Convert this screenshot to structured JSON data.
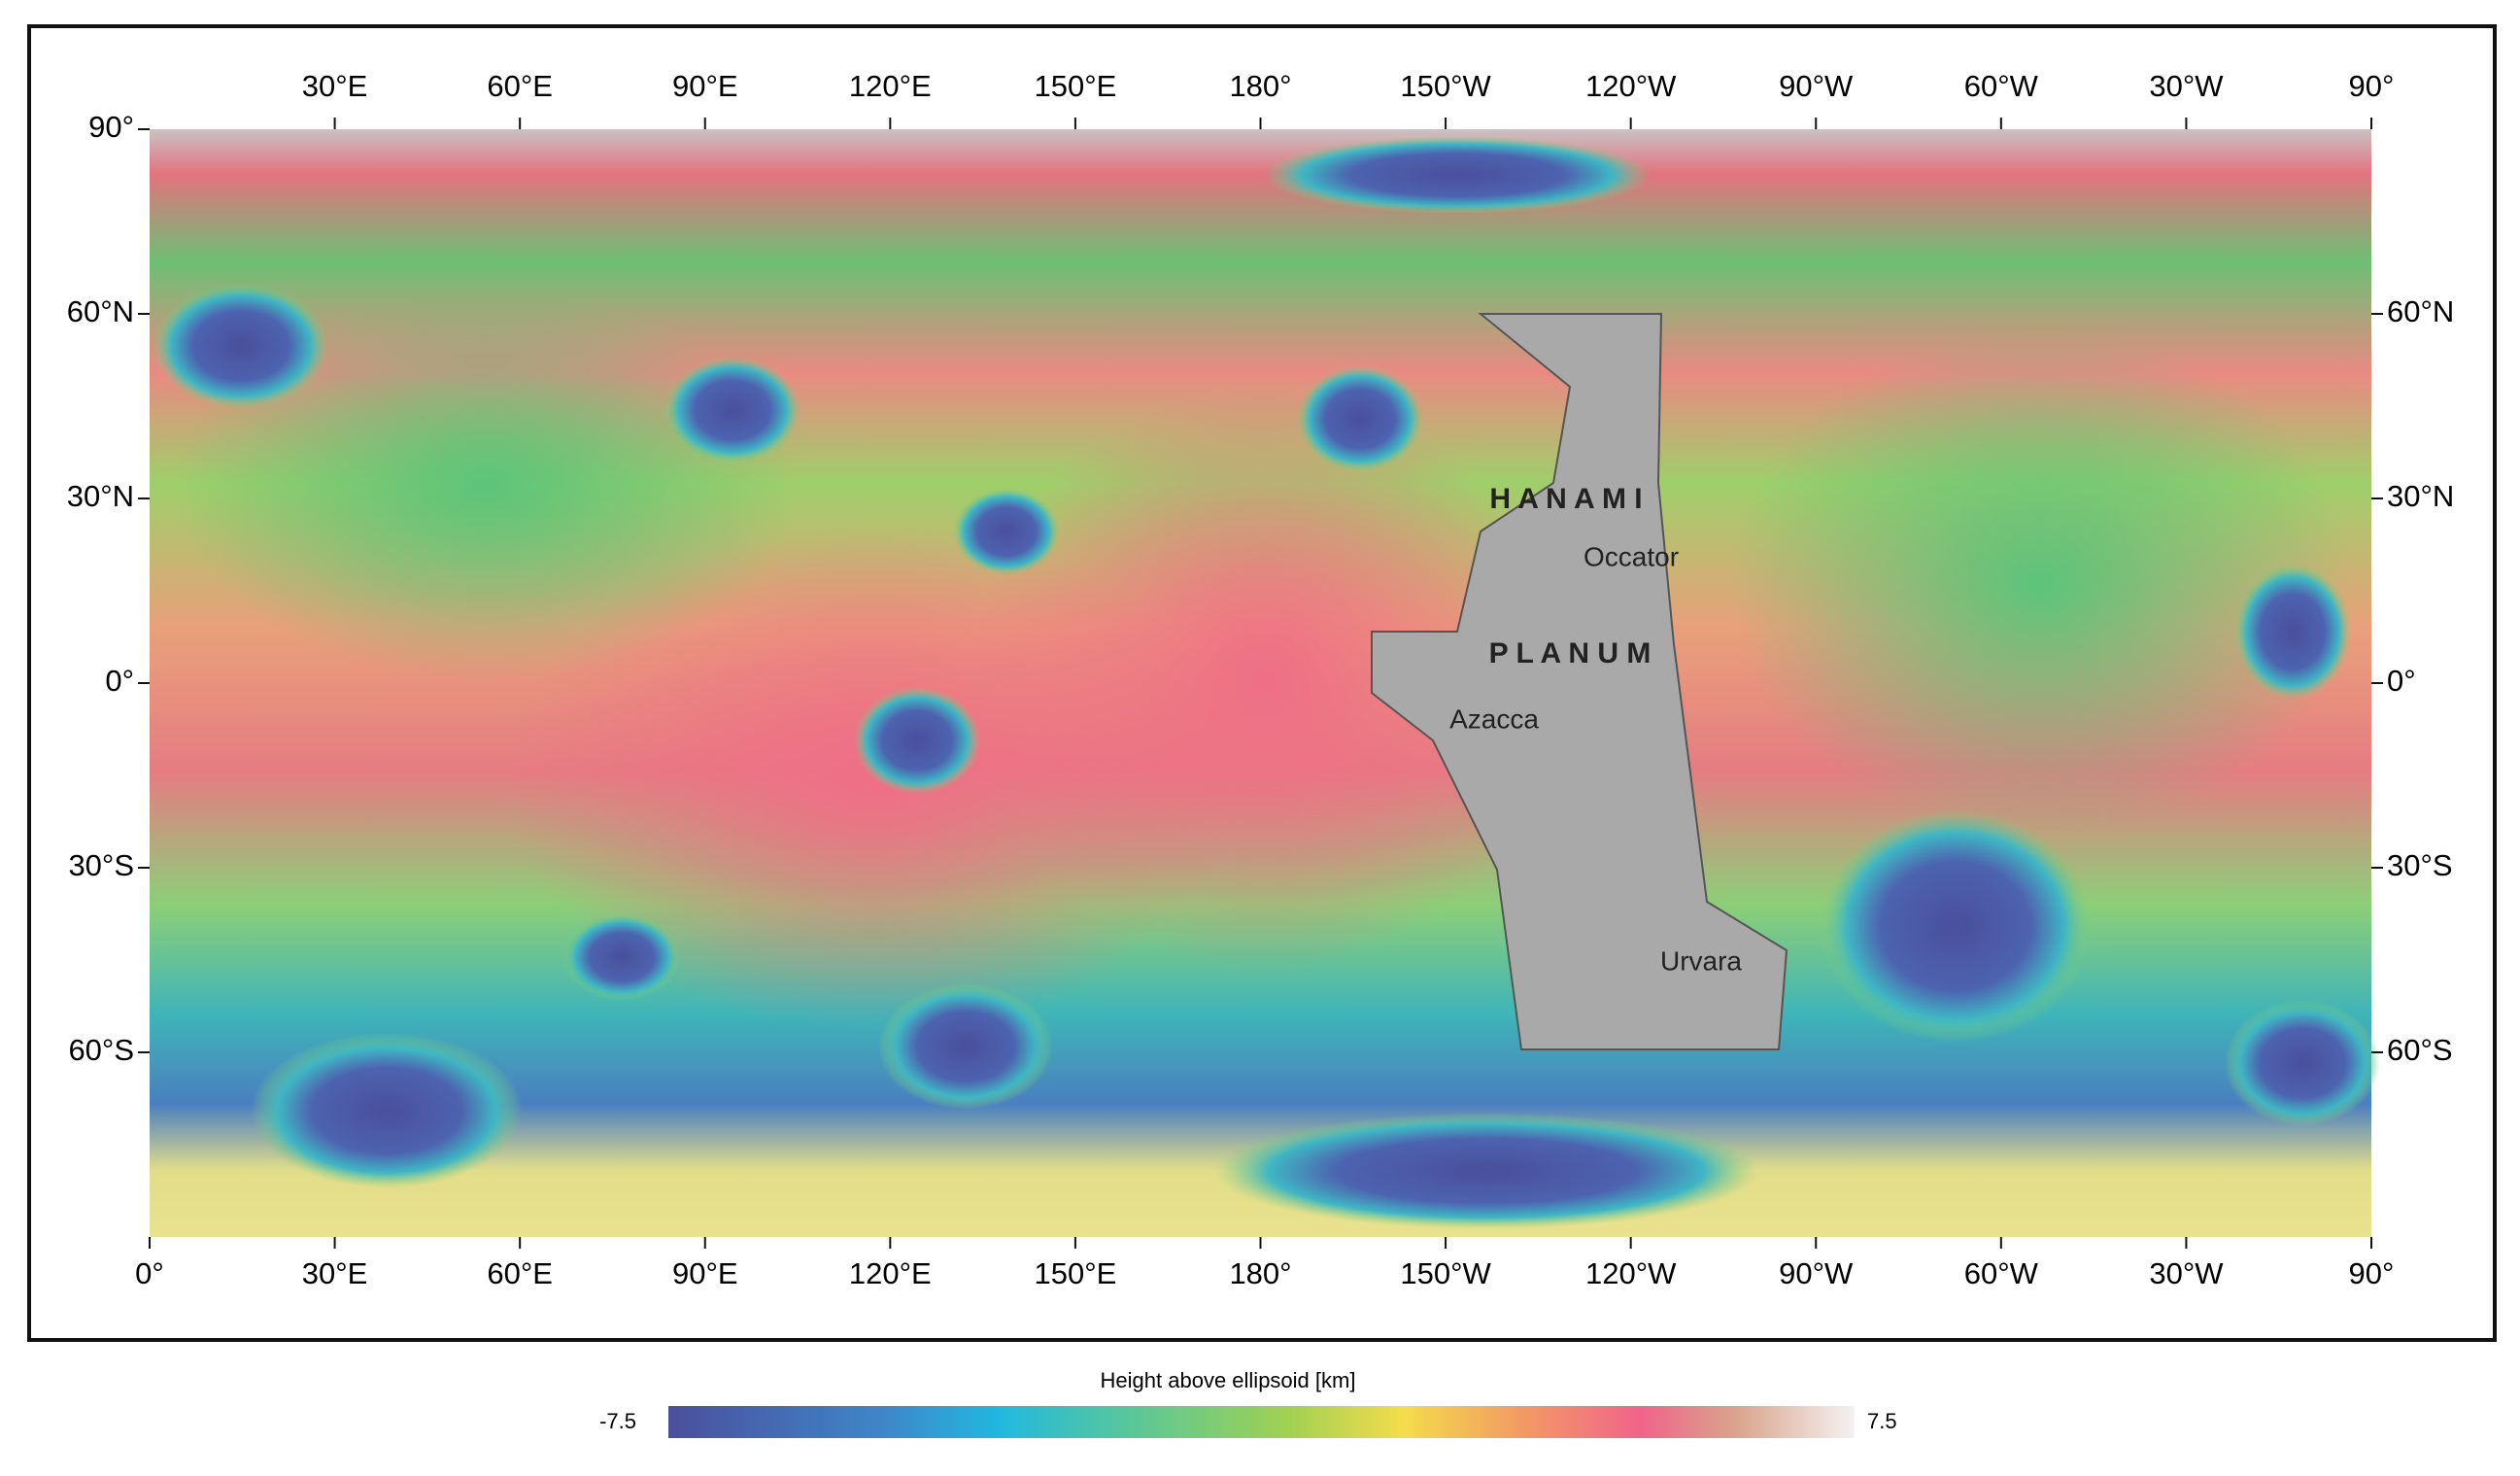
{
  "map": {
    "top_labels": [
      "30°E",
      "60°E",
      "90°E",
      "120°E",
      "150°E",
      "180°",
      "150°W",
      "120°W",
      "90°W",
      "60°W",
      "30°W",
      "90°"
    ],
    "bottom_labels": [
      "0°",
      "30°E",
      "60°E",
      "90°E",
      "120°E",
      "150°E",
      "180°",
      "150°W",
      "120°W",
      "90°W",
      "60°W",
      "30°W",
      "90°"
    ],
    "left_labels": [
      "90°",
      "60°N",
      "30°N",
      "0°",
      "30°S",
      "60°S"
    ],
    "right_labels": [
      "60°N",
      "30°N",
      "0°",
      "30°S",
      "60°S"
    ],
    "features": [
      "H A N A M I",
      "P L A N U M",
      "Occator",
      "Azacca",
      "Urvara"
    ]
  },
  "colorbar": {
    "title": "Height above ellipsoid [km]",
    "min": -7.5,
    "max": 7.5
  }
}
